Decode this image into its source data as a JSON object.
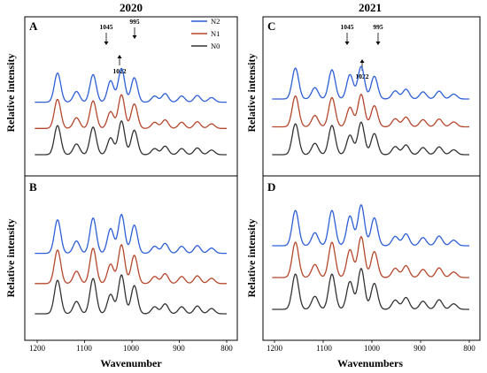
{
  "figure": {
    "column_titles": [
      "2020",
      "2021"
    ],
    "ylabel": "Relative intensity",
    "xlabels": [
      "Wavenumber",
      "Wavenumbers"
    ],
    "x_ticks": [
      "1200",
      "1100",
      "1000",
      "900",
      "800"
    ]
  },
  "legend": [
    {
      "name": "N2",
      "color": "#2e5fd6"
    },
    {
      "name": "N1",
      "color": "#b5472c"
    },
    {
      "name": "N0",
      "color": "#333333"
    }
  ],
  "annotations": {
    "A": [
      "1045",
      "995",
      "1022"
    ],
    "C": [
      "1045",
      "995",
      "1022"
    ]
  },
  "chart_data": [
    {
      "panel": "A",
      "year": "2020",
      "type": "line",
      "xlabel": "",
      "ylabel": "Relative intensity",
      "xlim": [
        1210,
        795
      ],
      "x_reversed": true,
      "series": [
        {
          "name": "N2",
          "color": "#2e5fd6",
          "offset": 2.0,
          "peaks": [
            [
              1157,
              0.95
            ],
            [
              1117,
              0.35
            ],
            [
              1082,
              0.9
            ],
            [
              1045,
              0.7
            ],
            [
              1022,
              1.1
            ],
            [
              995,
              0.8
            ],
            [
              952,
              0.2
            ],
            [
              930,
              0.28
            ],
            [
              895,
              0.2
            ],
            [
              862,
              0.22
            ],
            [
              832,
              0.15
            ]
          ]
        },
        {
          "name": "N1",
          "color": "#b5472c",
          "offset": 1.0,
          "peaks": [
            [
              1157,
              0.95
            ],
            [
              1117,
              0.35
            ],
            [
              1082,
              0.9
            ],
            [
              1045,
              0.55
            ],
            [
              1022,
              1.1
            ],
            [
              995,
              0.8
            ],
            [
              952,
              0.2
            ],
            [
              930,
              0.28
            ],
            [
              895,
              0.2
            ],
            [
              862,
              0.22
            ],
            [
              832,
              0.15
            ]
          ]
        },
        {
          "name": "N0",
          "color": "#333333",
          "offset": 0.0,
          "peaks": [
            [
              1157,
              0.95
            ],
            [
              1117,
              0.35
            ],
            [
              1082,
              0.9
            ],
            [
              1045,
              0.55
            ],
            [
              1022,
              1.1
            ],
            [
              995,
              0.8
            ],
            [
              952,
              0.2
            ],
            [
              930,
              0.28
            ],
            [
              895,
              0.2
            ],
            [
              862,
              0.22
            ],
            [
              832,
              0.15
            ]
          ]
        }
      ]
    },
    {
      "panel": "B",
      "year": "2020",
      "type": "line",
      "xlabel": "Wavenumber",
      "ylabel": "Relative intensity",
      "xlim": [
        1210,
        795
      ],
      "x_reversed": true,
      "x_ticks": [
        1200,
        1100,
        1000,
        900,
        800
      ],
      "series": [
        {
          "name": "N2",
          "color": "#2e5fd6",
          "offset": 2.0,
          "peaks": [
            [
              1157,
              0.95
            ],
            [
              1117,
              0.35
            ],
            [
              1082,
              1.0
            ],
            [
              1045,
              0.7
            ],
            [
              1022,
              1.1
            ],
            [
              995,
              0.8
            ],
            [
              952,
              0.2
            ],
            [
              930,
              0.28
            ],
            [
              895,
              0.2
            ],
            [
              862,
              0.22
            ],
            [
              832,
              0.15
            ]
          ]
        },
        {
          "name": "N1",
          "color": "#b5472c",
          "offset": 1.0,
          "peaks": [
            [
              1157,
              0.95
            ],
            [
              1117,
              0.35
            ],
            [
              1082,
              1.0
            ],
            [
              1045,
              0.55
            ],
            [
              1022,
              1.1
            ],
            [
              995,
              0.8
            ],
            [
              952,
              0.2
            ],
            [
              930,
              0.28
            ],
            [
              895,
              0.2
            ],
            [
              862,
              0.22
            ],
            [
              832,
              0.15
            ]
          ]
        },
        {
          "name": "N0",
          "color": "#333333",
          "offset": 0.0,
          "peaks": [
            [
              1157,
              0.95
            ],
            [
              1117,
              0.35
            ],
            [
              1082,
              1.0
            ],
            [
              1045,
              0.55
            ],
            [
              1022,
              1.1
            ],
            [
              995,
              0.8
            ],
            [
              952,
              0.2
            ],
            [
              930,
              0.28
            ],
            [
              895,
              0.2
            ],
            [
              862,
              0.22
            ],
            [
              832,
              0.15
            ]
          ]
        }
      ]
    },
    {
      "panel": "C",
      "year": "2021",
      "type": "line",
      "xlabel": "",
      "ylabel": "Relative intensity",
      "xlim": [
        1210,
        795
      ],
      "x_reversed": true,
      "series": [
        {
          "name": "N2",
          "color": "#2e5fd6",
          "offset": 2.0,
          "peaks": [
            [
              1157,
              0.95
            ],
            [
              1117,
              0.35
            ],
            [
              1082,
              0.9
            ],
            [
              1045,
              0.75
            ],
            [
              1022,
              1.0
            ],
            [
              995,
              0.7
            ],
            [
              952,
              0.25
            ],
            [
              930,
              0.3
            ],
            [
              895,
              0.22
            ],
            [
              862,
              0.24
            ],
            [
              832,
              0.15
            ]
          ]
        },
        {
          "name": "N1",
          "color": "#b5472c",
          "offset": 1.0,
          "peaks": [
            [
              1157,
              0.95
            ],
            [
              1117,
              0.35
            ],
            [
              1082,
              0.9
            ],
            [
              1045,
              0.6
            ],
            [
              1022,
              1.0
            ],
            [
              995,
              0.65
            ],
            [
              952,
              0.25
            ],
            [
              930,
              0.3
            ],
            [
              895,
              0.22
            ],
            [
              862,
              0.24
            ],
            [
              832,
              0.15
            ]
          ]
        },
        {
          "name": "N0",
          "color": "#333333",
          "offset": 0.0,
          "peaks": [
            [
              1157,
              0.95
            ],
            [
              1117,
              0.35
            ],
            [
              1082,
              0.9
            ],
            [
              1045,
              0.6
            ],
            [
              1022,
              1.0
            ],
            [
              995,
              0.65
            ],
            [
              952,
              0.25
            ],
            [
              930,
              0.3
            ],
            [
              895,
              0.22
            ],
            [
              862,
              0.24
            ],
            [
              832,
              0.15
            ]
          ]
        }
      ]
    },
    {
      "panel": "D",
      "year": "2021",
      "type": "line",
      "xlabel": "Wavenumbers",
      "ylabel": "Relative intensity",
      "xlim": [
        1210,
        795
      ],
      "x_reversed": true,
      "x_ticks": [
        1200,
        1100,
        1000,
        900,
        800
      ],
      "series": [
        {
          "name": "N2",
          "color": "#2e5fd6",
          "offset": 2.0,
          "peaks": [
            [
              1157,
              0.95
            ],
            [
              1117,
              0.35
            ],
            [
              1082,
              0.95
            ],
            [
              1045,
              0.8
            ],
            [
              1022,
              1.1
            ],
            [
              995,
              0.75
            ],
            [
              952,
              0.25
            ],
            [
              930,
              0.32
            ],
            [
              895,
              0.22
            ],
            [
              862,
              0.26
            ],
            [
              832,
              0.15
            ]
          ]
        },
        {
          "name": "N1",
          "color": "#b5472c",
          "offset": 1.0,
          "peaks": [
            [
              1157,
              0.95
            ],
            [
              1117,
              0.35
            ],
            [
              1082,
              0.95
            ],
            [
              1045,
              0.75
            ],
            [
              1022,
              1.1
            ],
            [
              995,
              0.7
            ],
            [
              952,
              0.25
            ],
            [
              930,
              0.32
            ],
            [
              895,
              0.22
            ],
            [
              862,
              0.26
            ],
            [
              832,
              0.15
            ]
          ]
        },
        {
          "name": "N0",
          "color": "#333333",
          "offset": 0.0,
          "peaks": [
            [
              1157,
              0.95
            ],
            [
              1117,
              0.35
            ],
            [
              1082,
              0.95
            ],
            [
              1045,
              0.75
            ],
            [
              1022,
              1.1
            ],
            [
              995,
              0.7
            ],
            [
              952,
              0.25
            ],
            [
              930,
              0.32
            ],
            [
              895,
              0.22
            ],
            [
              862,
              0.26
            ],
            [
              832,
              0.15
            ]
          ]
        }
      ]
    }
  ]
}
